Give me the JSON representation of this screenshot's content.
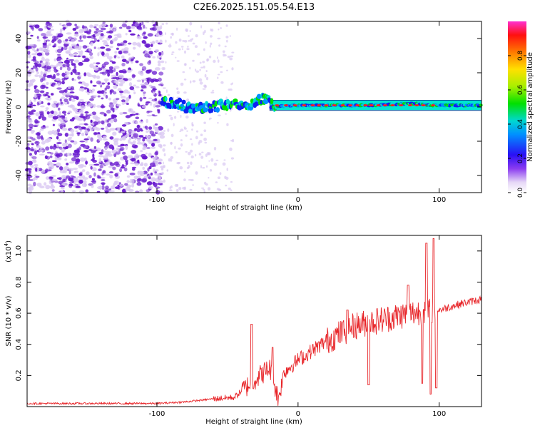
{
  "title": "C2E6.2025.151.05.54.E13",
  "colors": {
    "frame": "#000000",
    "snr_line": "#e8262a",
    "scatter_purple": "#6a1ccf",
    "scatter_light": "#d9c8f2"
  },
  "chart_data": [
    {
      "type": "heatmap",
      "name": "spectrogram",
      "xlabel": "Height of straight line (km)",
      "ylabel": "Frequency (Hz)",
      "xlim": [
        -192,
        130
      ],
      "ylim": [
        -50,
        50
      ],
      "x_ticks": [
        "-100",
        "0",
        "100"
      ],
      "x_tick_values": [
        -100,
        0,
        100
      ],
      "y_ticks": [
        "40",
        "20",
        "0",
        "-20",
        "-40"
      ],
      "y_tick_values": [
        40,
        20,
        0,
        -20,
        -40
      ],
      "colorbar": {
        "label": "Normalized spectral amplitude",
        "range": [
          0,
          1
        ],
        "ticks": [
          "0.0",
          "0.2",
          "0.4",
          "0.6",
          "0.8"
        ],
        "tick_values": [
          0.0,
          0.2,
          0.4,
          0.6,
          0.8
        ]
      },
      "noise_region": {
        "x_from": -192,
        "x_to": -96
      },
      "signal_band": [
        {
          "x": -96,
          "f": 3.0
        },
        {
          "x": -85,
          "f": 2.0
        },
        {
          "x": -75,
          "f": -1.5
        },
        {
          "x": -65,
          "f": 0.0
        },
        {
          "x": -55,
          "f": 1.0
        },
        {
          "x": -45,
          "f": 2.5
        },
        {
          "x": -35,
          "f": 0.5
        },
        {
          "x": -28,
          "f": 3.5
        },
        {
          "x": -22,
          "f": 6.0
        },
        {
          "x": -18,
          "f": 0.5
        },
        {
          "x": -10,
          "f": 0.5
        },
        {
          "x": 0,
          "f": 1.0
        },
        {
          "x": 20,
          "f": 1.0
        },
        {
          "x": 50,
          "f": 1.0
        },
        {
          "x": 85,
          "f": 2.0
        },
        {
          "x": 95,
          "f": 1.0
        },
        {
          "x": 130,
          "f": 1.0
        }
      ]
    },
    {
      "type": "line",
      "name": "snr",
      "xlabel": "Height of straight line (km)",
      "ylabel": "SNR (10 * v/v)",
      "y_scale_label": "(x10",
      "y_scale_exp": "4",
      "y_scale_close": ")",
      "xlim": [
        -192,
        130
      ],
      "ylim": [
        0,
        1.1
      ],
      "x_ticks": [
        "-100",
        "0",
        "100"
      ],
      "x_tick_values": [
        -100,
        0,
        100
      ],
      "y_ticks": [
        "1.0",
        "0.8",
        "0.6",
        "0.4",
        "0.2"
      ],
      "y_tick_values": [
        1.0,
        0.8,
        0.6,
        0.4,
        0.2
      ],
      "envelope": [
        {
          "x": -192,
          "y": 0.02
        },
        {
          "x": -100,
          "y": 0.02
        },
        {
          "x": -80,
          "y": 0.03
        },
        {
          "x": -60,
          "y": 0.05
        },
        {
          "x": -45,
          "y": 0.06
        },
        {
          "x": -30,
          "y": 0.18
        },
        {
          "x": -20,
          "y": 0.25
        },
        {
          "x": -14,
          "y": 0.05
        },
        {
          "x": -10,
          "y": 0.22
        },
        {
          "x": 0,
          "y": 0.3
        },
        {
          "x": 20,
          "y": 0.42
        },
        {
          "x": 40,
          "y": 0.52
        },
        {
          "x": 60,
          "y": 0.56
        },
        {
          "x": 80,
          "y": 0.6
        },
        {
          "x": 95,
          "y": 0.62
        },
        {
          "x": 100,
          "y": 0.62
        },
        {
          "x": 115,
          "y": 0.66
        },
        {
          "x": 130,
          "y": 0.69
        }
      ],
      "spikes": [
        {
          "x": -33,
          "y": 0.53
        },
        {
          "x": -18,
          "y": 0.38
        },
        {
          "x": 5,
          "y": 0.3
        },
        {
          "x": 35,
          "y": 0.62
        },
        {
          "x": 50,
          "y": 0.14
        },
        {
          "x": 78,
          "y": 0.78
        },
        {
          "x": 88,
          "y": 0.15
        },
        {
          "x": 91,
          "y": 1.05
        },
        {
          "x": 94,
          "y": 0.08
        },
        {
          "x": 96,
          "y": 1.08
        },
        {
          "x": 98,
          "y": 0.12
        }
      ]
    }
  ]
}
